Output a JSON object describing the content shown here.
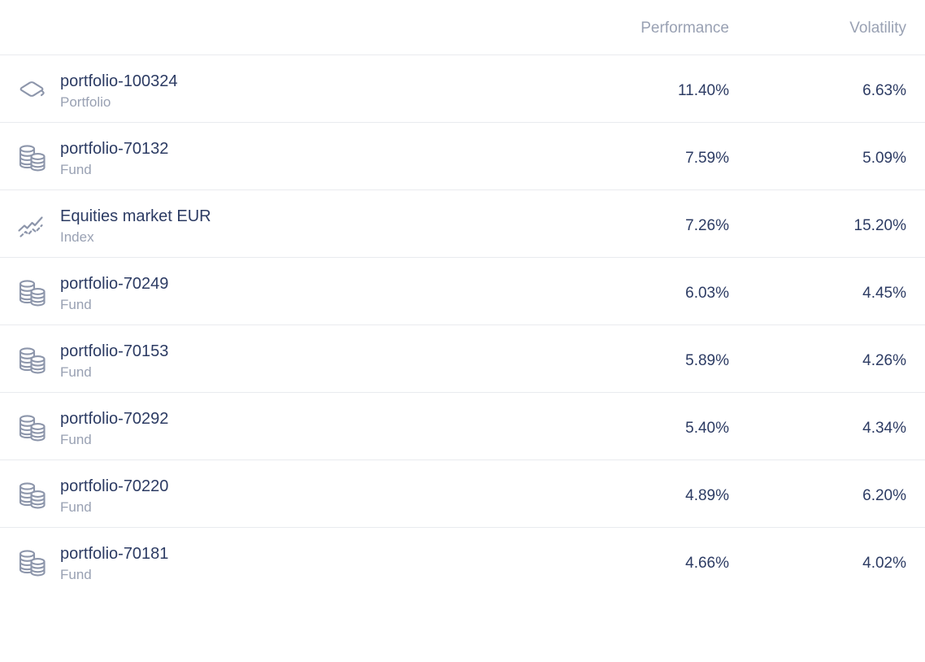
{
  "table": {
    "columns": [
      {
        "label": "Performance"
      },
      {
        "label": "Volatility"
      }
    ],
    "rows": [
      {
        "name": "portfolio-100324",
        "type": "Portfolio",
        "icon": "portfolio-icon",
        "performance": "11.40%",
        "volatility": "6.63%"
      },
      {
        "name": "portfolio-70132",
        "type": "Fund",
        "icon": "fund-coins-icon",
        "performance": "7.59%",
        "volatility": "5.09%"
      },
      {
        "name": "Equities market EUR",
        "type": "Index",
        "icon": "index-chart-icon",
        "performance": "7.26%",
        "volatility": "15.20%"
      },
      {
        "name": "portfolio-70249",
        "type": "Fund",
        "icon": "fund-coins-icon",
        "performance": "6.03%",
        "volatility": "4.45%"
      },
      {
        "name": "portfolio-70153",
        "type": "Fund",
        "icon": "fund-coins-icon",
        "performance": "5.89%",
        "volatility": "4.26%"
      },
      {
        "name": "portfolio-70292",
        "type": "Fund",
        "icon": "fund-coins-icon",
        "performance": "5.40%",
        "volatility": "4.34%"
      },
      {
        "name": "portfolio-70220",
        "type": "Fund",
        "icon": "fund-coins-icon",
        "performance": "4.89%",
        "volatility": "6.20%"
      },
      {
        "name": "portfolio-70181",
        "type": "Fund",
        "icon": "fund-coins-icon",
        "performance": "4.66%",
        "volatility": "4.02%"
      }
    ]
  },
  "colors": {
    "text_primary": "#2c3b63",
    "text_secondary": "#99a1b3",
    "icon": "#8d96ab",
    "divider": "#e9ebef",
    "background": "#ffffff"
  }
}
